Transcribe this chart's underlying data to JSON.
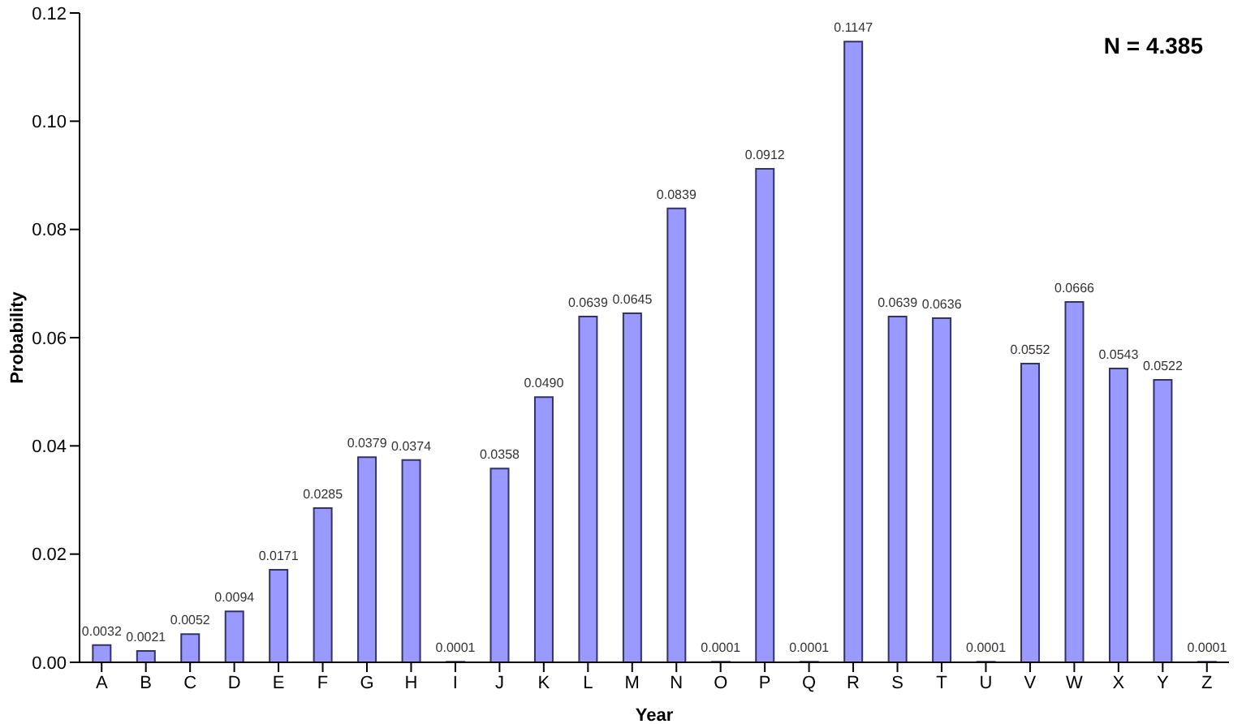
{
  "chart_data": {
    "type": "bar",
    "xlabel": "Year",
    "ylabel": "Probability",
    "annotations": [
      "N = 4.385"
    ],
    "categories": [
      "A",
      "B",
      "C",
      "D",
      "E",
      "F",
      "G",
      "H",
      "I",
      "J",
      "K",
      "L",
      "M",
      "N",
      "O",
      "P",
      "Q",
      "R",
      "S",
      "T",
      "U",
      "V",
      "W",
      "X",
      "Y",
      "Z"
    ],
    "values": [
      0.0032,
      0.0021,
      0.0052,
      0.0094,
      0.0171,
      0.0285,
      0.0379,
      0.0374,
      0.0001,
      0.0358,
      0.049,
      0.0639,
      0.0645,
      0.0839,
      0.0001,
      0.0912,
      0.0001,
      0.1147,
      0.0639,
      0.0636,
      0.0001,
      0.0552,
      0.0666,
      0.0543,
      0.0522,
      0.0001
    ],
    "value_labels": [
      "0.0032",
      "0.0021",
      "0.0052",
      "0.0094",
      "0.0171",
      "0.0285",
      "0.0379",
      "0.0374",
      "0.0001",
      "0.0358",
      "0.0490",
      "0.0639",
      "0.0645",
      "0.0839",
      "0.0001",
      "0.0912",
      "0.0001",
      "0.1147",
      "0.0639",
      "0.0636",
      "0.0001",
      "0.0552",
      "0.0666",
      "0.0543",
      "0.0522",
      "0.0001"
    ],
    "color": "#9999ff",
    "ylim": [
      0,
      0.12
    ],
    "yticks": [
      {
        "value": 0,
        "label": "0.00"
      },
      {
        "value": 0.02,
        "label": "0.02"
      },
      {
        "value": 0.04,
        "label": "0.04"
      },
      {
        "value": 0.06,
        "label": "0.06"
      },
      {
        "value": 0.08,
        "label": "0.08"
      },
      {
        "value": 0.1,
        "label": "0.10"
      },
      {
        "value": 0.12,
        "label": "0.12"
      }
    ]
  }
}
